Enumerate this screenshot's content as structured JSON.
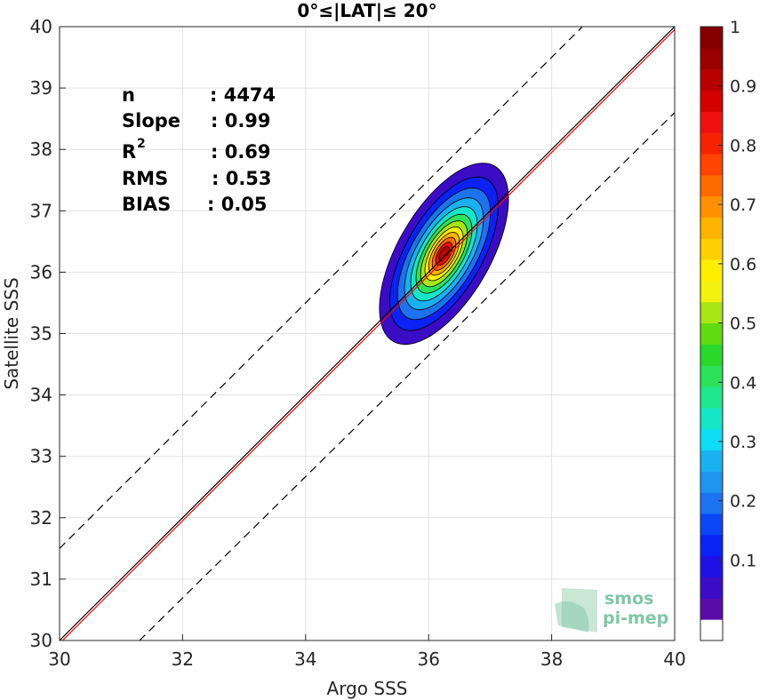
{
  "chart_data": {
    "type": "scatter",
    "title": "0°≤|LAT|≤ 20°",
    "xlabel": "Argo SSS",
    "ylabel": "Satellite SSS",
    "xlim": [
      30,
      40
    ],
    "ylim": [
      30,
      40
    ],
    "xticks": [
      "30",
      "32",
      "34",
      "36",
      "38",
      "40"
    ],
    "yticks": [
      "30",
      "31",
      "32",
      "33",
      "34",
      "35",
      "36",
      "37",
      "38",
      "39",
      "40"
    ],
    "grid": true,
    "stats": [
      {
        "label": "n",
        "value": ": 4474"
      },
      {
        "label": "Slope",
        "value": ": 0.99"
      },
      {
        "label": "R",
        "sup": "2",
        "value": ": 0.69"
      },
      {
        "label": "RMS",
        "value": ": 0.53"
      },
      {
        "label": "BIAS",
        "value": ": 0.05"
      }
    ],
    "reference_lines": {
      "identity": {
        "x": [
          30,
          40
        ],
        "y": [
          30,
          40
        ],
        "color": "#000000",
        "style": "solid"
      },
      "regression": {
        "x": [
          30,
          40
        ],
        "y": [
          29.95,
          39.95
        ],
        "color": "#ff0000",
        "style": "solid"
      },
      "upper_bound": {
        "x": [
          30,
          38.5
        ],
        "y": [
          31.5,
          40
        ],
        "color": "#000000",
        "style": "dashed"
      },
      "lower_bound": {
        "x": [
          31.3,
          40
        ],
        "y": [
          30,
          38.6
        ],
        "color": "#000000",
        "style": "dashed"
      }
    },
    "density_contours": {
      "center": [
        36.25,
        36.3
      ],
      "angle_deg": 60,
      "levels": [
        {
          "level": 0.05,
          "semi_major": 1.65,
          "semi_minor": 0.75,
          "color": "#3a0cc6"
        },
        {
          "level": 0.15,
          "semi_major": 1.4,
          "semi_minor": 0.62,
          "color": "#0a22f5"
        },
        {
          "level": 0.25,
          "semi_major": 1.2,
          "semi_minor": 0.53,
          "color": "#1c73f0"
        },
        {
          "level": 0.35,
          "semi_major": 1.02,
          "semi_minor": 0.45,
          "color": "#1ab1f2"
        },
        {
          "level": 0.45,
          "semi_major": 0.86,
          "semi_minor": 0.38,
          "color": "#14e6c8"
        },
        {
          "level": 0.55,
          "semi_major": 0.72,
          "semi_minor": 0.32,
          "color": "#2de15a"
        },
        {
          "level": 0.6,
          "semi_major": 0.6,
          "semi_minor": 0.27,
          "color": "#a8e615"
        },
        {
          "level": 0.7,
          "semi_major": 0.49,
          "semi_minor": 0.22,
          "color": "#ffee00"
        },
        {
          "level": 0.75,
          "semi_major": 0.39,
          "semi_minor": 0.18,
          "color": "#ffb400"
        },
        {
          "level": 0.8,
          "semi_major": 0.3,
          "semi_minor": 0.14,
          "color": "#ff6a00"
        },
        {
          "level": 0.9,
          "semi_major": 0.21,
          "semi_minor": 0.1,
          "color": "#f01010"
        },
        {
          "level": 0.95,
          "semi_major": 0.13,
          "semi_minor": 0.065,
          "color": "#b80000"
        }
      ]
    },
    "colorbar": {
      "ticks": [
        "0.1",
        "0.2",
        "0.3",
        "0.4",
        "0.5",
        "0.6",
        "0.7",
        "0.8",
        "0.9",
        "1"
      ],
      "colors": [
        "#ffffff",
        "#5b0ca8",
        "#3a0cc6",
        "#1f10e6",
        "#0a22f5",
        "#0a46f5",
        "#1c73f0",
        "#1e96f0",
        "#1ab1f2",
        "#0fdcf5",
        "#14e6c8",
        "#1ee68c",
        "#2de15a",
        "#29d82a",
        "#5fdb12",
        "#a8e615",
        "#f2f20e",
        "#ffee00",
        "#ffd000",
        "#ffb400",
        "#ff9100",
        "#ff6a00",
        "#ff4300",
        "#f52300",
        "#f01010",
        "#d40000",
        "#b80000",
        "#9a0000",
        "#840000"
      ]
    },
    "logo": {
      "line1": "smos",
      "line2": "pi-mep"
    }
  }
}
